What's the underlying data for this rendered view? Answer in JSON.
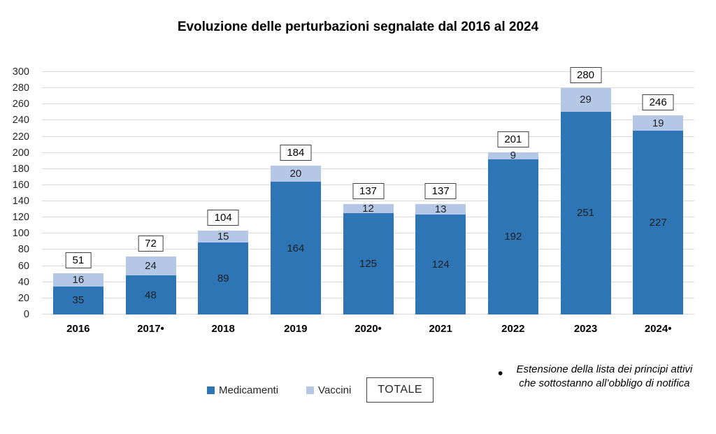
{
  "title": "Evoluzione delle perturbazioni segnalate dal 2016 al 2024",
  "chart_data": {
    "type": "bar",
    "stacked": true,
    "title": "Evoluzione delle perturbazioni segnalate dal 2016 al 2024",
    "categories": [
      "2016",
      "2017•",
      "2018",
      "2019",
      "2020•",
      "2021",
      "2022",
      "2023",
      "2024•"
    ],
    "series": [
      {
        "name": "Medicamenti",
        "color": "#2E75B6",
        "values": [
          35,
          48,
          89,
          164,
          125,
          124,
          192,
          251,
          227
        ]
      },
      {
        "name": "Vaccini",
        "color": "#B4C7E7",
        "values": [
          16,
          24,
          15,
          20,
          12,
          13,
          9,
          29,
          19
        ]
      }
    ],
    "totals": [
      51,
      72,
      104,
      184,
      137,
      137,
      201,
      280,
      246
    ],
    "totals_style": "boxed-labels-above-bars",
    "ylim": [
      0,
      300
    ],
    "ytick_step": 20,
    "grid": true,
    "legend_position": "bottom"
  },
  "legend": {
    "medicamenti_label": "Medicamenti",
    "medicamenti_color": "#2E75B6",
    "vaccini_label": "Vaccini",
    "vaccini_color": "#B4C7E7",
    "totale_label": "TOTALE"
  },
  "footnote": {
    "bullet": "•",
    "text": "Estensione della lista dei principi attivi che sottostanno all’obbligo di notifica"
  }
}
